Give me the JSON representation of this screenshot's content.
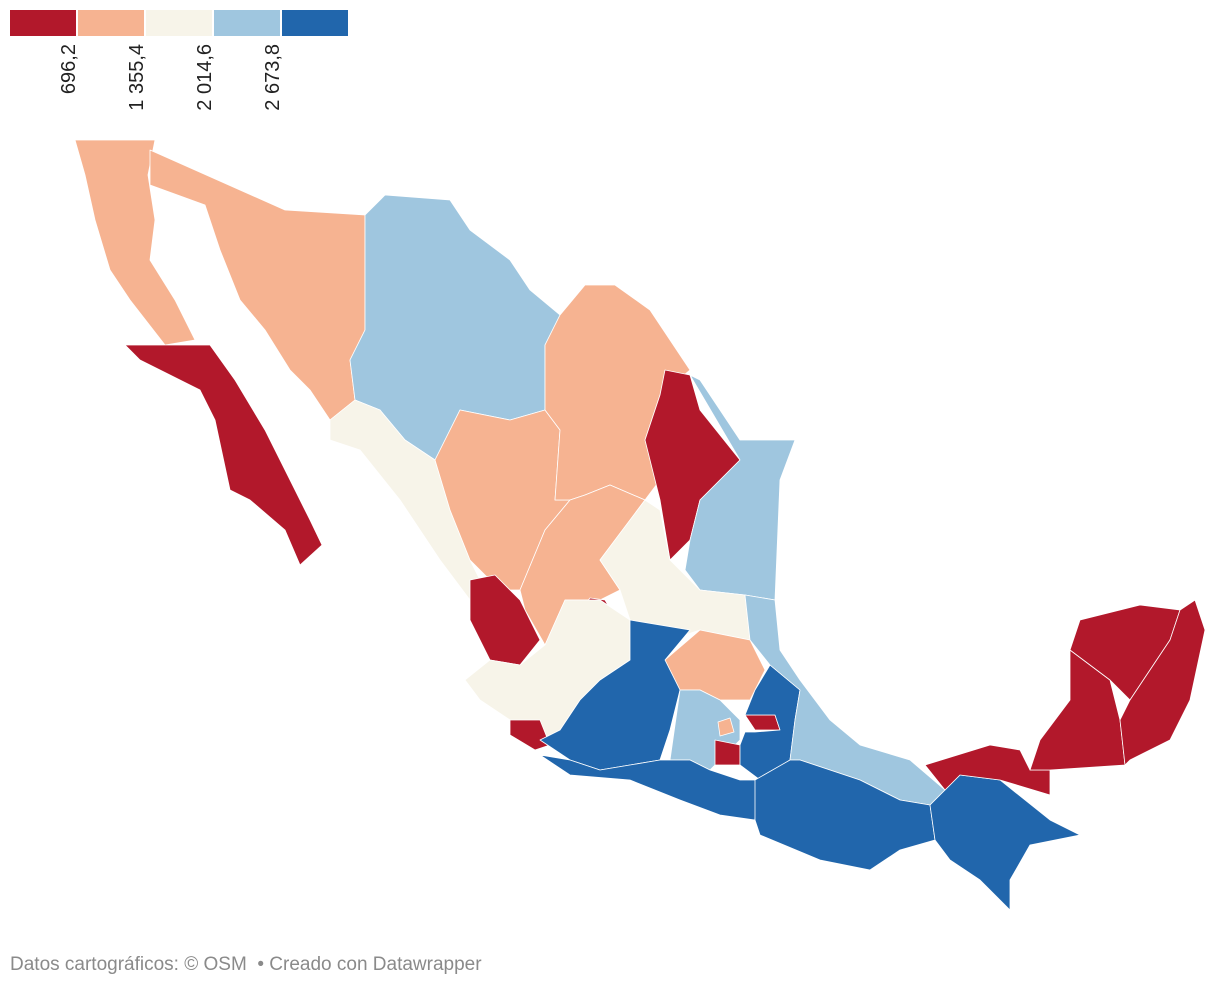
{
  "legend": {
    "colors": [
      "#b2182b",
      "#f6b391",
      "#f7f4e9",
      "#9fc6df",
      "#2166ac"
    ],
    "ticks": [
      {
        "value": 696.2,
        "label": "696,2"
      },
      {
        "value": 1355.4,
        "label": "1 355,4"
      },
      {
        "value": 2014.6,
        "label": "2 014,6"
      },
      {
        "value": 2673.8,
        "label": "2 673,8"
      }
    ]
  },
  "footer": {
    "text": "Datos cartográficos: © OSM  • Creado con Datawrapper"
  }
}
